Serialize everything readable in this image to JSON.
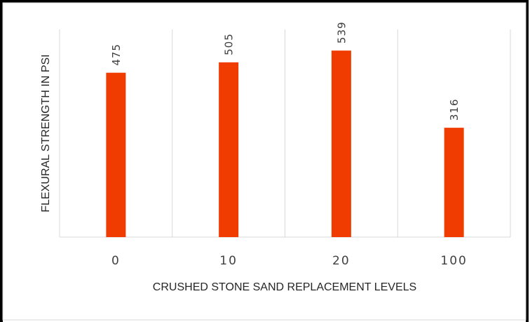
{
  "chart_data": {
    "type": "bar",
    "x_label": "CRUSHED STONE SAND REPLACEMENT LEVELS",
    "y_label": "FLEXURAL STRENGTH IN PSI",
    "categories": [
      "0",
      "10",
      "20",
      "100"
    ],
    "values": [
      475,
      505,
      539,
      316
    ],
    "color": "#f03c00",
    "ylim": [
      0,
      600
    ],
    "grid": true
  }
}
